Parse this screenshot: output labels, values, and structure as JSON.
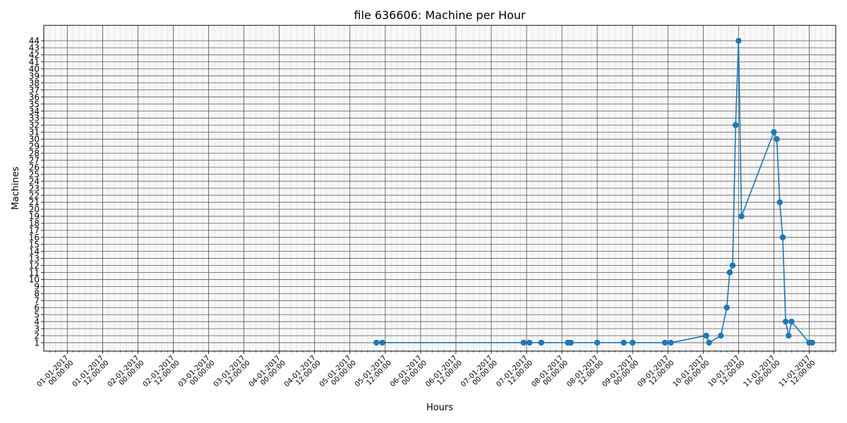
{
  "chart_data": {
    "type": "line",
    "title": "file 636606: Machine per Hour",
    "xlabel": "Hours",
    "ylabel": "Machines",
    "color": "#1f77b4",
    "grid": true,
    "x_tick_labels": [
      [
        "01-01-2017",
        "00:00:00"
      ],
      [
        "01-01-2017",
        "12:00:00"
      ],
      [
        "02-01-2017",
        "00:00:00"
      ],
      [
        "02-01-2017",
        "12:00:00"
      ],
      [
        "03-01-2017",
        "00:00:00"
      ],
      [
        "03-01-2017",
        "12:00:00"
      ],
      [
        "04-01-2017",
        "00:00:00"
      ],
      [
        "04-01-2017",
        "12:00:00"
      ],
      [
        "05-01-2017",
        "00:00:00"
      ],
      [
        "05-01-2017",
        "12:00:00"
      ],
      [
        "06-01-2017",
        "00:00:00"
      ],
      [
        "06-01-2017",
        "12:00:00"
      ],
      [
        "07-01-2017",
        "00:00:00"
      ],
      [
        "07-01-2017",
        "12:00:00"
      ],
      [
        "08-01-2017",
        "00:00:00"
      ],
      [
        "08-01-2017",
        "12:00:00"
      ],
      [
        "09-01-2017",
        "00:00:00"
      ],
      [
        "09-01-2017",
        "12:00:00"
      ],
      [
        "10-01-2017",
        "00:00:00"
      ],
      [
        "10-01-2017",
        "12:00:00"
      ],
      [
        "11-01-2017",
        "00:00:00"
      ],
      [
        "11-01-2017",
        "12:00:00"
      ]
    ],
    "y_ticks": [
      1,
      2,
      3,
      4,
      5,
      6,
      7,
      8,
      9,
      10,
      11,
      12,
      13,
      14,
      15,
      16,
      17,
      18,
      19,
      20,
      21,
      22,
      23,
      24,
      25,
      26,
      27,
      28,
      29,
      30,
      31,
      32,
      33,
      34,
      35,
      36,
      37,
      38,
      39,
      40,
      41,
      42,
      43,
      44
    ],
    "xlim": [
      "2016-12-31 16:00",
      "2017-01-11 21:00"
    ],
    "ylim": [
      -0.2,
      46.2
    ],
    "points": [
      {
        "x": "2017-01-05 09:00",
        "y": 1
      },
      {
        "x": "2017-01-05 11:00",
        "y": 1
      },
      {
        "x": "2017-01-07 11:00",
        "y": 1
      },
      {
        "x": "2017-01-07 13:00",
        "y": 1
      },
      {
        "x": "2017-01-07 17:00",
        "y": 1
      },
      {
        "x": "2017-01-08 02:00",
        "y": 1
      },
      {
        "x": "2017-01-08 03:00",
        "y": 1
      },
      {
        "x": "2017-01-08 12:00",
        "y": 1
      },
      {
        "x": "2017-01-08 21:00",
        "y": 1
      },
      {
        "x": "2017-01-09 00:00",
        "y": 1
      },
      {
        "x": "2017-01-09 11:00",
        "y": 1
      },
      {
        "x": "2017-01-09 13:00",
        "y": 1
      },
      {
        "x": "2017-01-10 01:00",
        "y": 2
      },
      {
        "x": "2017-01-10 02:00",
        "y": 1
      },
      {
        "x": "2017-01-10 06:00",
        "y": 2
      },
      {
        "x": "2017-01-10 08:00",
        "y": 6
      },
      {
        "x": "2017-01-10 09:00",
        "y": 11
      },
      {
        "x": "2017-01-10 10:00",
        "y": 12
      },
      {
        "x": "2017-01-10 11:00",
        "y": 32
      },
      {
        "x": "2017-01-10 12:00",
        "y": 44
      },
      {
        "x": "2017-01-10 13:00",
        "y": 19
      },
      {
        "x": "2017-01-11 00:00",
        "y": 31
      },
      {
        "x": "2017-01-11 01:00",
        "y": 30
      },
      {
        "x": "2017-01-11 02:00",
        "y": 21
      },
      {
        "x": "2017-01-11 03:00",
        "y": 16
      },
      {
        "x": "2017-01-11 04:00",
        "y": 4
      },
      {
        "x": "2017-01-11 05:00",
        "y": 2
      },
      {
        "x": "2017-01-11 06:00",
        "y": 4
      },
      {
        "x": "2017-01-11 12:00",
        "y": 1
      },
      {
        "x": "2017-01-11 13:00",
        "y": 1
      }
    ]
  }
}
